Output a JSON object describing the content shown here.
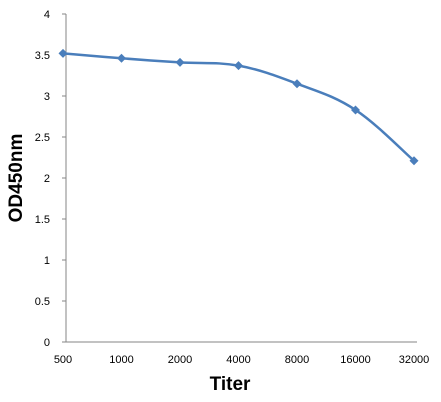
{
  "chart_data": {
    "type": "line",
    "title": "",
    "xlabel": "Titer",
    "ylabel": "OD450nm",
    "categories": [
      "500",
      "1000",
      "2000",
      "4000",
      "8000",
      "16000",
      "32000"
    ],
    "series": [
      {
        "values": [
          3.52,
          3.46,
          3.41,
          3.37,
          3.15,
          2.83,
          2.21
        ],
        "color": "#4a7ebb",
        "marker": "diamond",
        "smooth": true
      }
    ],
    "y_ticks": [
      "0",
      "0.5",
      "1",
      "1.5",
      "2",
      "2.5",
      "3",
      "3.5",
      "4"
    ],
    "ylim": [
      0,
      4
    ],
    "grid": false,
    "legend": "none"
  }
}
